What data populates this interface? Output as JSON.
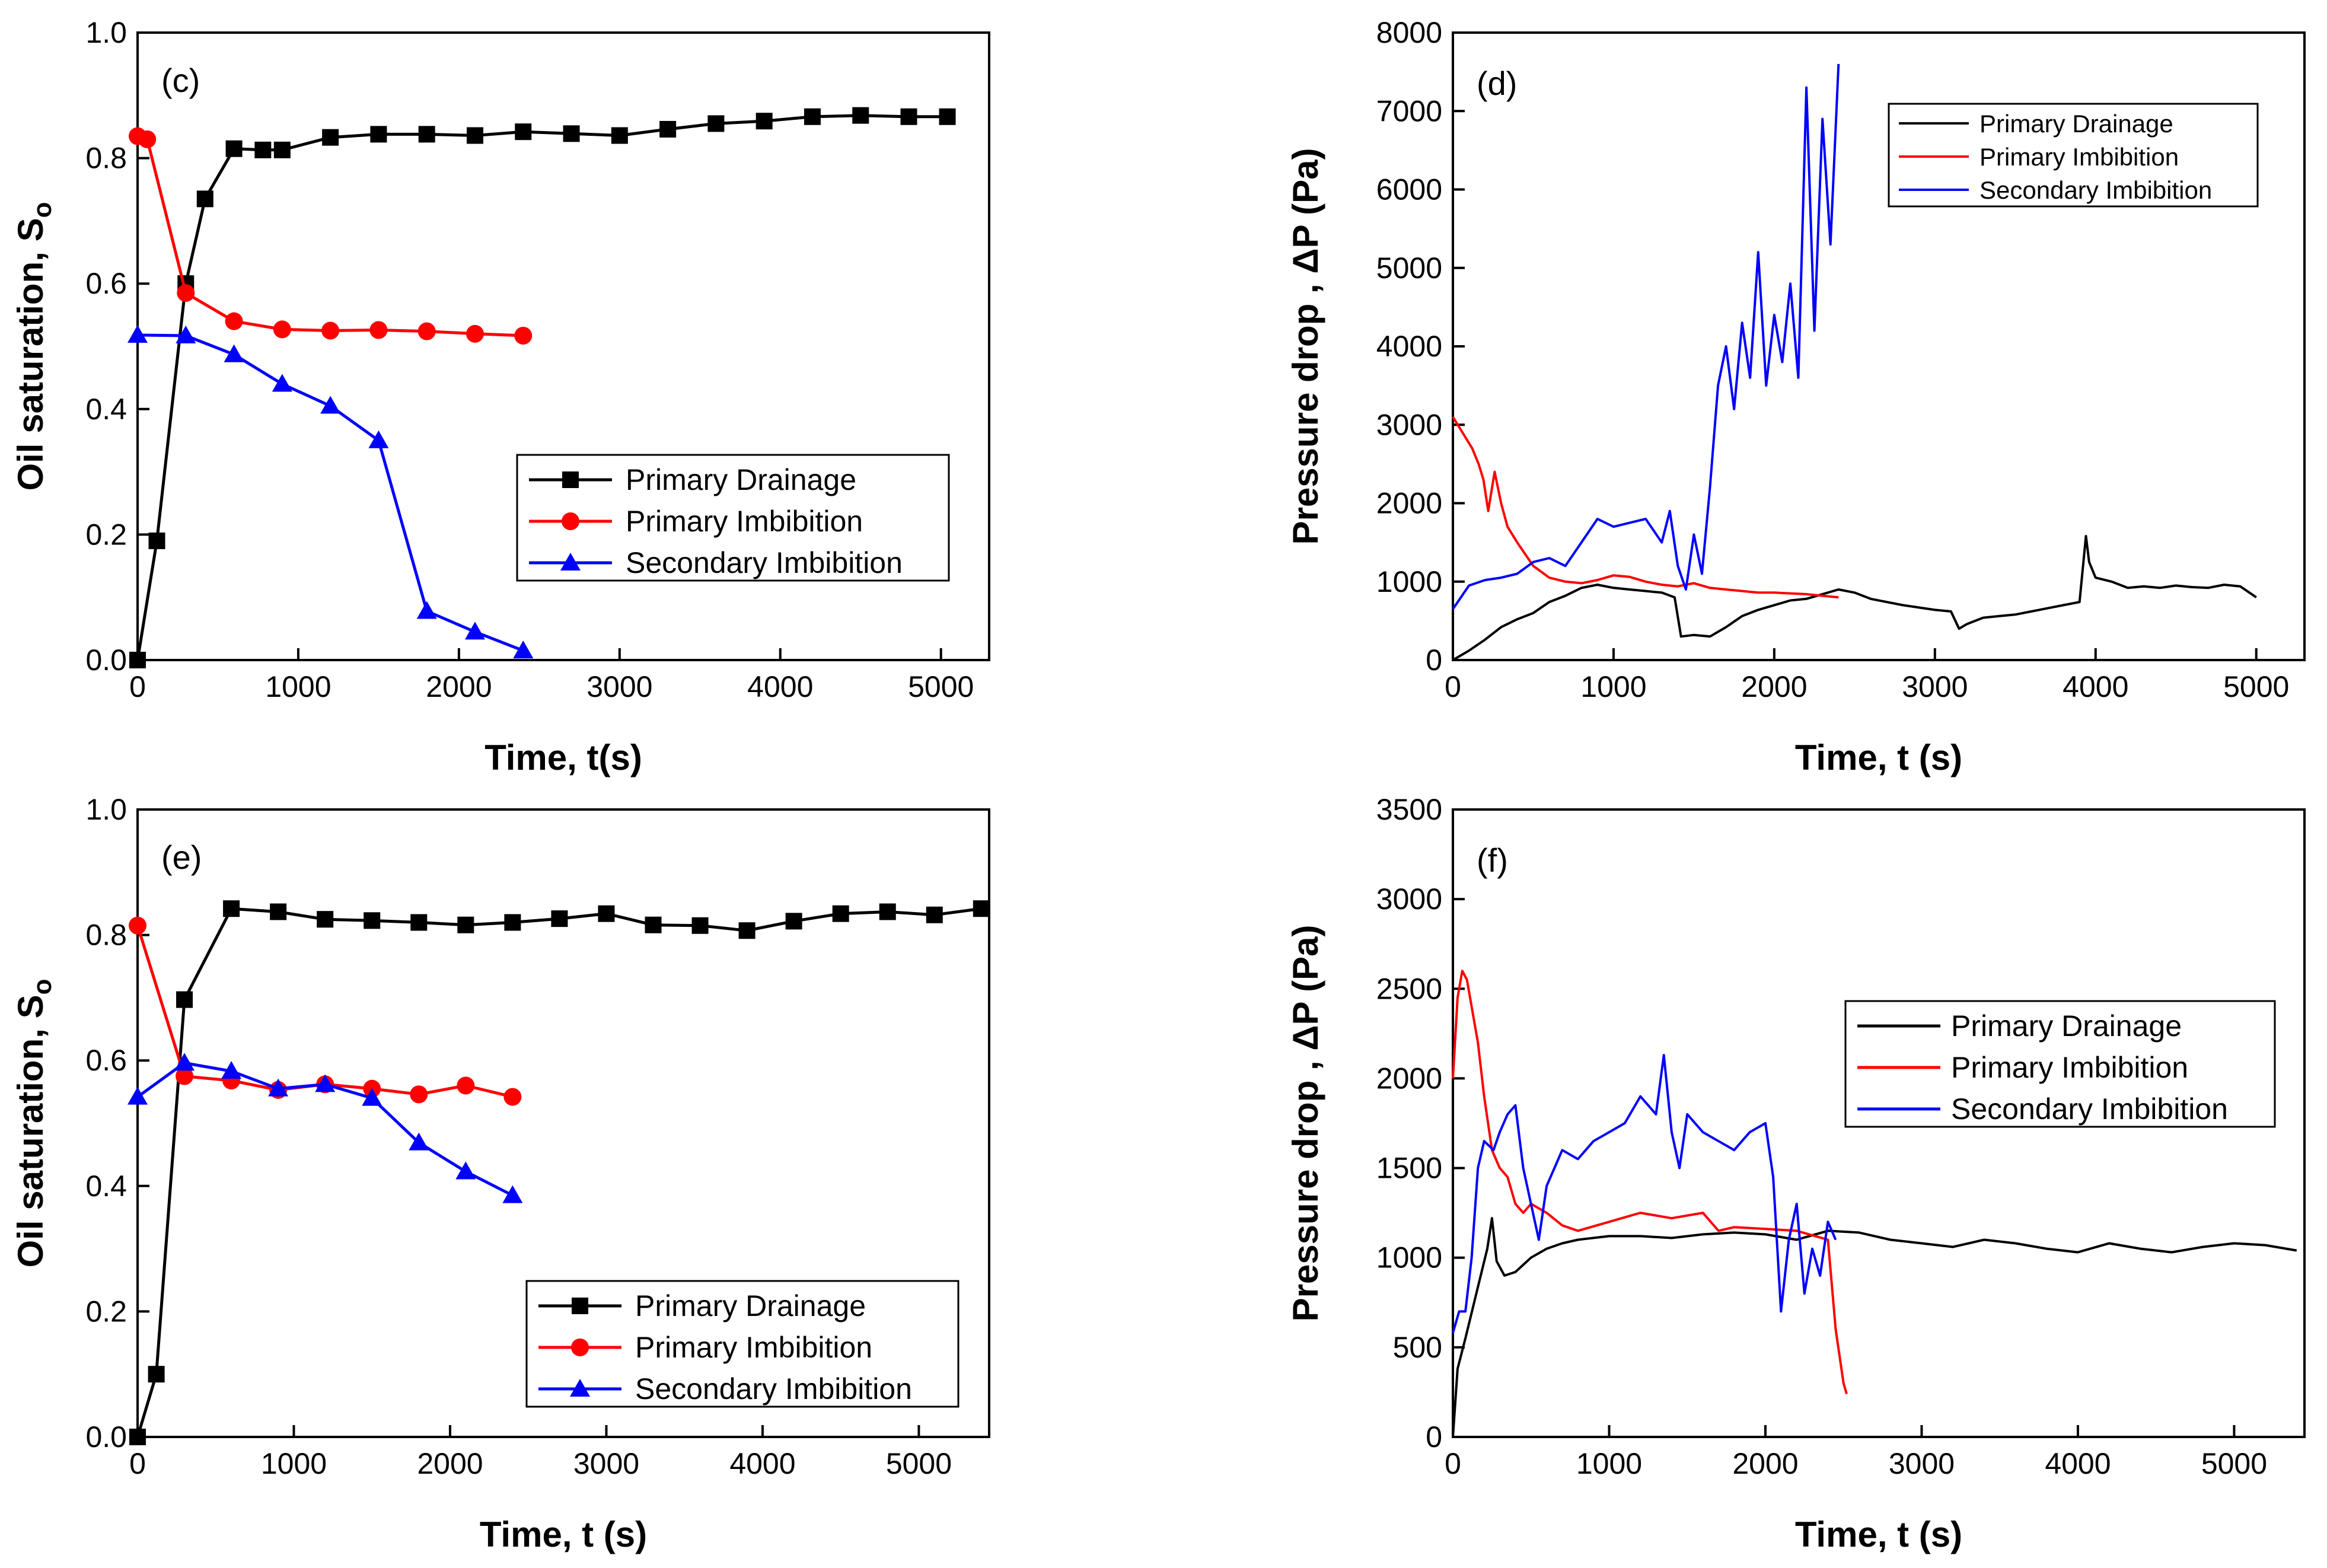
{
  "figure": {
    "panel_count": 4
  },
  "chart_data": [
    {
      "panel": "(c)",
      "type": "line",
      "title": "",
      "xlabel": "Time, t(s)",
      "ylabel": "Oil saturation, S",
      "ylabel_subscript": "o",
      "xlim": [
        0,
        5300
      ],
      "ylim": [
        0.0,
        1.0
      ],
      "xticks": [
        0,
        1000,
        2000,
        3000,
        4000,
        5000
      ],
      "yticks": [
        0.0,
        0.2,
        0.4,
        0.6,
        0.8,
        1.0
      ],
      "ytick_labels": [
        "0.0",
        "0.2",
        "0.4",
        "0.6",
        "0.8",
        "1.0"
      ],
      "legend": {
        "position": "center-right"
      },
      "series": [
        {
          "name": "Primary Drainage",
          "color": "#000000",
          "marker": "square",
          "x": [
            0,
            120,
            300,
            420,
            600,
            780,
            900,
            1200,
            1500,
            1800,
            2100,
            2400,
            2700,
            3000,
            3300,
            3600,
            3900,
            4200,
            4500,
            4800,
            5040
          ],
          "y": [
            0.0,
            0.19,
            0.6,
            0.735,
            0.815,
            0.813,
            0.813,
            0.833,
            0.838,
            0.838,
            0.836,
            0.842,
            0.839,
            0.836,
            0.846,
            0.855,
            0.859,
            0.866,
            0.868,
            0.866,
            0.866
          ]
        },
        {
          "name": "Primary Imbibition",
          "color": "#ff0000",
          "marker": "circle",
          "x": [
            0,
            60,
            300,
            600,
            900,
            1200,
            1500,
            1800,
            2100,
            2400
          ],
          "y": [
            0.835,
            0.83,
            0.585,
            0.54,
            0.527,
            0.525,
            0.526,
            0.524,
            0.52,
            0.517
          ]
        },
        {
          "name": "Secondary Imbibition",
          "color": "#0000ff",
          "marker": "triangle",
          "x": [
            0,
            300,
            600,
            900,
            1200,
            1500,
            1800,
            2100,
            2400
          ],
          "y": [
            0.518,
            0.517,
            0.487,
            0.44,
            0.405,
            0.35,
            0.078,
            0.045,
            0.015
          ]
        }
      ]
    },
    {
      "panel": "(d)",
      "type": "line",
      "title": "",
      "xlabel": "Time, t (s)",
      "ylabel": "Pressure drop , ΔP (Pa)",
      "xlim": [
        0,
        5300
      ],
      "ylim": [
        0,
        8000
      ],
      "xticks": [
        0,
        1000,
        2000,
        3000,
        4000,
        5000
      ],
      "yticks": [
        0,
        1000,
        2000,
        3000,
        4000,
        5000,
        6000,
        7000,
        8000
      ],
      "legend": {
        "position": "top-right"
      },
      "series": [
        {
          "name": "Primary Drainage",
          "color": "#000000",
          "x": [
            0,
            100,
            200,
            300,
            400,
            500,
            600,
            700,
            800,
            900,
            1000,
            1100,
            1200,
            1300,
            1380,
            1420,
            1500,
            1600,
            1700,
            1800,
            1900,
            2000,
            2100,
            2200,
            2300,
            2400,
            2500,
            2600,
            2800,
            3000,
            3100,
            3150,
            3200,
            3300,
            3400,
            3500,
            3600,
            3700,
            3800,
            3900,
            3940,
            3960,
            4000,
            4100,
            4200,
            4300,
            4400,
            4500,
            4600,
            4700,
            4800,
            4900,
            5000
          ],
          "y": [
            0,
            120,
            260,
            420,
            520,
            600,
            740,
            820,
            920,
            960,
            920,
            900,
            880,
            860,
            800,
            300,
            320,
            300,
            420,
            560,
            640,
            700,
            760,
            780,
            840,
            900,
            860,
            780,
            700,
            640,
            620,
            400,
            460,
            540,
            560,
            580,
            620,
            660,
            700,
            740,
            1580,
            1250,
            1050,
            1000,
            920,
            940,
            920,
            950,
            930,
            920,
            960,
            940,
            800
          ]
        },
        {
          "name": "Primary Imbibition",
          "color": "#ff0000",
          "x": [
            0,
            60,
            120,
            160,
            190,
            220,
            260,
            300,
            340,
            400,
            500,
            600,
            700,
            800,
            900,
            1000,
            1100,
            1200,
            1300,
            1400,
            1500,
            1600,
            1700,
            1800,
            1900,
            2000,
            2100,
            2200,
            2300,
            2400
          ],
          "y": [
            3100,
            2900,
            2700,
            2500,
            2300,
            1900,
            2400,
            2000,
            1700,
            1500,
            1200,
            1050,
            1000,
            980,
            1020,
            1080,
            1060,
            1000,
            960,
            940,
            980,
            920,
            900,
            880,
            860,
            860,
            850,
            840,
            820,
            800
          ]
        },
        {
          "name": "Secondary Imbibition",
          "color": "#0000ff",
          "x": [
            0,
            100,
            200,
            300,
            400,
            500,
            600,
            700,
            800,
            900,
            1000,
            1100,
            1200,
            1300,
            1350,
            1400,
            1450,
            1500,
            1550,
            1600,
            1650,
            1700,
            1750,
            1800,
            1850,
            1900,
            1950,
            2000,
            2050,
            2100,
            2150,
            2200,
            2250,
            2300,
            2350,
            2400
          ],
          "y": [
            650,
            950,
            1020,
            1050,
            1100,
            1250,
            1300,
            1200,
            1500,
            1800,
            1700,
            1750,
            1800,
            1500,
            1900,
            1200,
            900,
            1600,
            1100,
            2200,
            3500,
            4000,
            3200,
            4300,
            3600,
            5200,
            3500,
            4400,
            3800,
            4800,
            3600,
            7300,
            4200,
            6900,
            5300,
            7600
          ]
        }
      ]
    },
    {
      "panel": "(e)",
      "type": "line",
      "title": "",
      "xlabel": "Time, t (s)",
      "ylabel": "Oil saturation, S",
      "ylabel_subscript": "o",
      "xlim": [
        0,
        5450
      ],
      "ylim": [
        0.0,
        1.0
      ],
      "xticks": [
        0,
        1000,
        2000,
        3000,
        4000,
        5000
      ],
      "yticks": [
        0.0,
        0.2,
        0.4,
        0.6,
        0.8,
        1.0
      ],
      "ytick_labels": [
        "0.0",
        "0.2",
        "0.4",
        "0.6",
        "0.8",
        "1.0"
      ],
      "legend": {
        "position": "bottom-right"
      },
      "series": [
        {
          "name": "Primary Drainage",
          "color": "#000000",
          "marker": "square",
          "x": [
            0,
            120,
            300,
            600,
            900,
            1200,
            1500,
            1800,
            2100,
            2400,
            2700,
            3000,
            3300,
            3600,
            3900,
            4200,
            4500,
            4800,
            5100,
            5400
          ],
          "y": [
            0.0,
            0.1,
            0.697,
            0.842,
            0.837,
            0.825,
            0.823,
            0.82,
            0.816,
            0.82,
            0.826,
            0.834,
            0.816,
            0.815,
            0.807,
            0.822,
            0.834,
            0.837,
            0.832,
            0.842
          ]
        },
        {
          "name": "Primary Imbibition",
          "color": "#ff0000",
          "marker": "circle",
          "x": [
            0,
            300,
            600,
            900,
            1200,
            1500,
            1800,
            2100,
            2400
          ],
          "y": [
            0.815,
            0.575,
            0.568,
            0.553,
            0.562,
            0.555,
            0.546,
            0.56,
            0.542
          ]
        },
        {
          "name": "Secondary Imbibition",
          "color": "#0000ff",
          "marker": "triangle",
          "x": [
            0,
            300,
            600,
            900,
            1200,
            1500,
            1800,
            2100,
            2400
          ],
          "y": [
            0.542,
            0.596,
            0.583,
            0.555,
            0.562,
            0.54,
            0.469,
            0.423,
            0.385
          ]
        }
      ]
    },
    {
      "panel": "(f)",
      "type": "line",
      "title": "",
      "xlabel": "Time, t (s)",
      "ylabel": "Pressure drop , ΔP (Pa)",
      "xlim": [
        0,
        5450
      ],
      "ylim": [
        0,
        3500
      ],
      "xticks": [
        0,
        1000,
        2000,
        3000,
        4000,
        5000
      ],
      "yticks": [
        0,
        500,
        1000,
        1500,
        2000,
        2500,
        3000,
        3500
      ],
      "legend": {
        "position": "center-right"
      },
      "series": [
        {
          "name": "Primary Drainage",
          "color": "#000000",
          "x": [
            0,
            30,
            80,
            150,
            220,
            250,
            280,
            330,
            400,
            500,
            600,
            700,
            800,
            1000,
            1200,
            1400,
            1600,
            1800,
            2000,
            2200,
            2400,
            2600,
            2800,
            3000,
            3200,
            3400,
            3600,
            3800,
            4000,
            4200,
            4400,
            4600,
            4800,
            5000,
            5200,
            5400
          ],
          "y": [
            0,
            380,
            550,
            800,
            1050,
            1220,
            980,
            900,
            920,
            1000,
            1050,
            1080,
            1100,
            1120,
            1120,
            1110,
            1130,
            1140,
            1130,
            1100,
            1150,
            1140,
            1100,
            1080,
            1060,
            1100,
            1080,
            1050,
            1030,
            1080,
            1050,
            1030,
            1060,
            1080,
            1070,
            1040
          ]
        },
        {
          "name": "Primary Imbibition",
          "color": "#ff0000",
          "x": [
            0,
            30,
            60,
            90,
            120,
            160,
            200,
            250,
            300,
            350,
            400,
            450,
            500,
            600,
            700,
            800,
            1000,
            1200,
            1400,
            1600,
            1700,
            1800,
            2000,
            2200,
            2400,
            2450,
            2500,
            2520
          ],
          "y": [
            2000,
            2450,
            2600,
            2550,
            2400,
            2200,
            1900,
            1600,
            1500,
            1450,
            1300,
            1250,
            1300,
            1250,
            1180,
            1150,
            1200,
            1250,
            1220,
            1250,
            1150,
            1170,
            1160,
            1150,
            1100,
            600,
            300,
            240
          ]
        },
        {
          "name": "Secondary Imbibition",
          "color": "#0000ff",
          "x": [
            0,
            40,
            80,
            120,
            160,
            200,
            260,
            300,
            350,
            400,
            450,
            500,
            550,
            600,
            700,
            800,
            900,
            1000,
            1100,
            1200,
            1300,
            1350,
            1400,
            1450,
            1500,
            1600,
            1700,
            1800,
            1900,
            2000,
            2050,
            2100,
            2150,
            2200,
            2250,
            2300,
            2350,
            2400,
            2450
          ],
          "y": [
            580,
            700,
            700,
            1000,
            1500,
            1650,
            1600,
            1700,
            1800,
            1850,
            1500,
            1300,
            1100,
            1400,
            1600,
            1550,
            1650,
            1700,
            1750,
            1900,
            1800,
            2130,
            1700,
            1500,
            1800,
            1700,
            1650,
            1600,
            1700,
            1750,
            1450,
            700,
            1100,
            1300,
            800,
            1050,
            900,
            1200,
            1100
          ]
        }
      ]
    }
  ]
}
